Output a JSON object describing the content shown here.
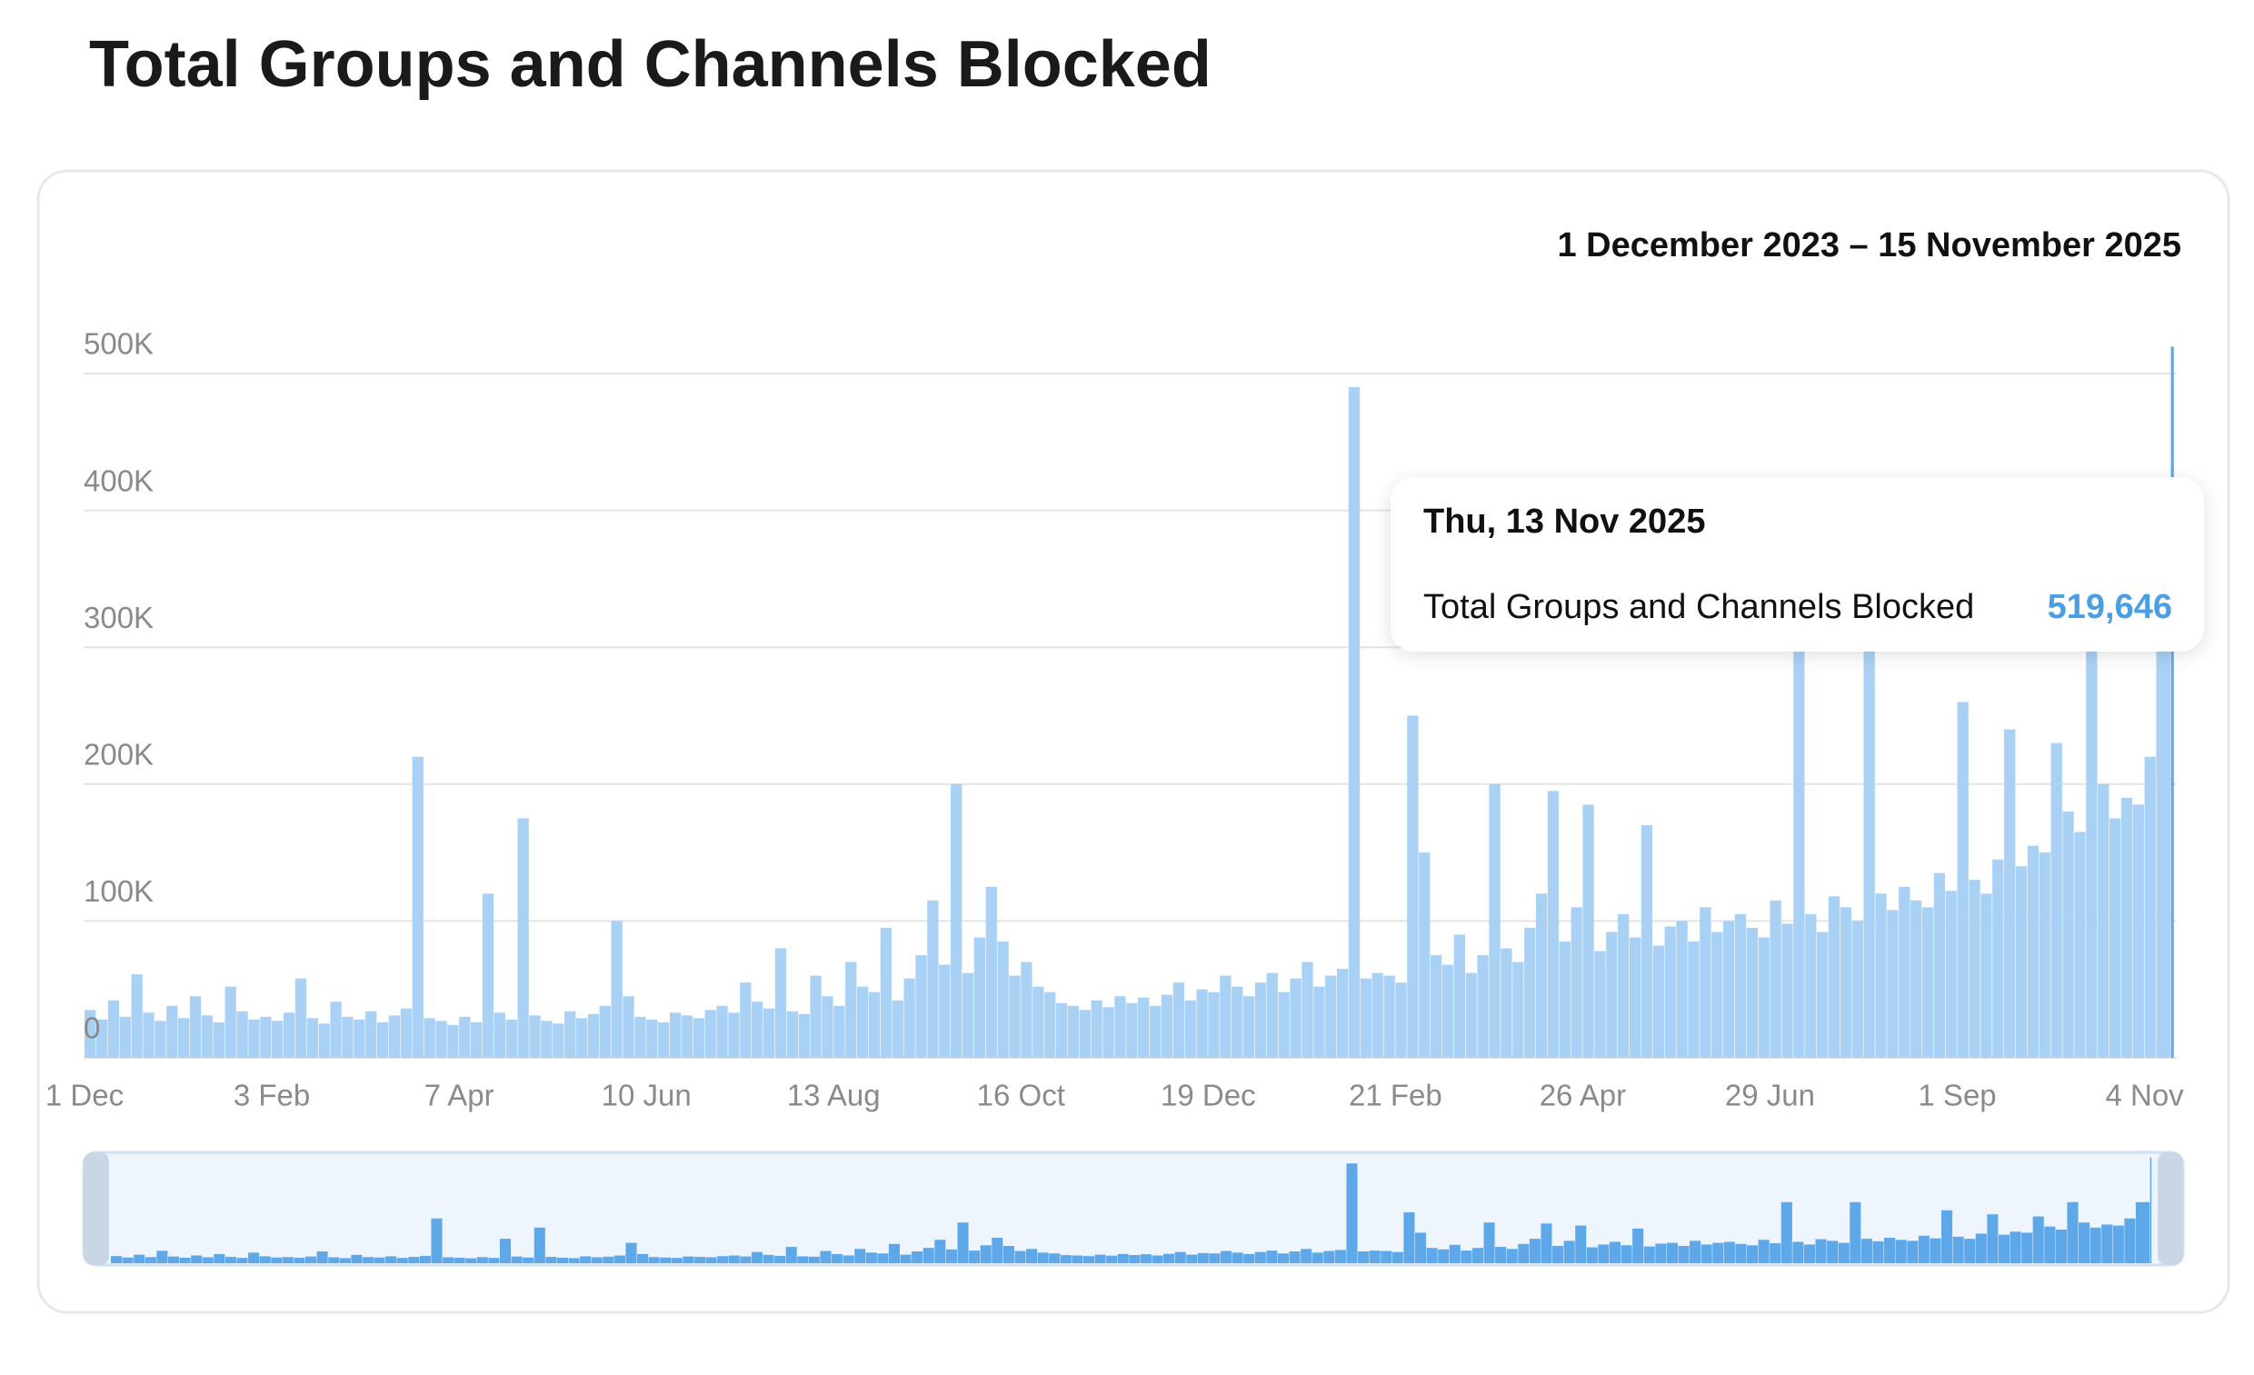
{
  "chart_data": {
    "type": "bar",
    "title": "Total Groups and Channels Blocked",
    "subtitle": "1 December 2023 – 15 November 2025",
    "x": [
      "2023-12-01",
      "2023-12-05",
      "2023-12-09",
      "2023-12-13",
      "2023-12-17",
      "2023-12-21",
      "2023-12-25",
      "2023-12-29",
      "2024-01-02",
      "2024-01-06",
      "2024-01-10",
      "2024-01-14",
      "2024-01-18",
      "2024-01-22",
      "2024-01-26",
      "2024-01-30",
      "2024-02-03",
      "2024-02-07",
      "2024-02-11",
      "2024-02-15",
      "2024-02-19",
      "2024-02-23",
      "2024-02-27",
      "2024-03-02",
      "2024-03-06",
      "2024-03-10",
      "2024-03-14",
      "2024-03-18",
      "2024-03-22",
      "2024-03-26",
      "2024-03-30",
      "2024-04-03",
      "2024-04-07",
      "2024-04-11",
      "2024-04-15",
      "2024-04-19",
      "2024-04-23",
      "2024-04-27",
      "2024-05-01",
      "2024-05-05",
      "2024-05-09",
      "2024-05-13",
      "2024-05-17",
      "2024-05-21",
      "2024-05-25",
      "2024-05-29",
      "2024-06-02",
      "2024-06-06",
      "2024-06-10",
      "2024-06-14",
      "2024-06-18",
      "2024-06-22",
      "2024-06-26",
      "2024-06-30",
      "2024-07-04",
      "2024-07-08",
      "2024-07-12",
      "2024-07-16",
      "2024-07-20",
      "2024-07-24",
      "2024-07-28",
      "2024-08-01",
      "2024-08-05",
      "2024-08-09",
      "2024-08-13",
      "2024-08-17",
      "2024-08-21",
      "2024-08-25",
      "2024-08-29",
      "2024-09-02",
      "2024-09-06",
      "2024-09-10",
      "2024-09-14",
      "2024-09-18",
      "2024-09-22",
      "2024-09-26",
      "2024-09-30",
      "2024-10-04",
      "2024-10-08",
      "2024-10-12",
      "2024-10-16",
      "2024-10-20",
      "2024-10-24",
      "2024-10-28",
      "2024-11-01",
      "2024-11-05",
      "2024-11-09",
      "2024-11-13",
      "2024-11-17",
      "2024-11-21",
      "2024-11-25",
      "2024-11-29",
      "2024-12-03",
      "2024-12-07",
      "2024-12-11",
      "2024-12-15",
      "2024-12-19",
      "2024-12-23",
      "2024-12-27",
      "2024-12-31",
      "2025-01-04",
      "2025-01-08",
      "2025-01-12",
      "2025-01-16",
      "2025-01-20",
      "2025-01-24",
      "2025-01-28",
      "2025-02-01",
      "2025-02-05",
      "2025-02-09",
      "2025-02-13",
      "2025-02-17",
      "2025-02-21",
      "2025-02-25",
      "2025-03-01",
      "2025-03-05",
      "2025-03-09",
      "2025-03-13",
      "2025-03-17",
      "2025-03-21",
      "2025-03-25",
      "2025-03-29",
      "2025-04-02",
      "2025-04-06",
      "2025-04-10",
      "2025-04-14",
      "2025-04-18",
      "2025-04-22",
      "2025-04-26",
      "2025-04-30",
      "2025-05-04",
      "2025-05-08",
      "2025-05-12",
      "2025-05-16",
      "2025-05-20",
      "2025-05-24",
      "2025-05-28",
      "2025-06-01",
      "2025-06-05",
      "2025-06-09",
      "2025-06-13",
      "2025-06-17",
      "2025-06-21",
      "2025-06-25",
      "2025-06-29",
      "2025-07-03",
      "2025-07-07",
      "2025-07-11",
      "2025-07-15",
      "2025-07-19",
      "2025-07-23",
      "2025-07-27",
      "2025-07-31",
      "2025-08-04",
      "2025-08-08",
      "2025-08-12",
      "2025-08-16",
      "2025-08-20",
      "2025-08-24",
      "2025-08-28",
      "2025-09-01",
      "2025-09-05",
      "2025-09-09",
      "2025-09-13",
      "2025-09-17",
      "2025-09-21",
      "2025-09-25",
      "2025-09-29",
      "2025-10-03",
      "2025-10-07",
      "2025-10-11",
      "2025-10-15",
      "2025-10-19",
      "2025-10-23",
      "2025-10-27",
      "2025-10-31",
      "2025-11-04",
      "2025-11-08",
      "2025-11-13"
    ],
    "series": [
      {
        "name": "Total Groups and Channels Blocked",
        "color": "#a9d1f5",
        "nav_color": "#5ea8ea",
        "values": [
          35000,
          28000,
          42000,
          30000,
          61000,
          33000,
          27000,
          38000,
          29000,
          45000,
          31000,
          26000,
          52000,
          34000,
          28000,
          30000,
          27000,
          33000,
          58000,
          29000,
          25000,
          41000,
          30000,
          28000,
          34000,
          26000,
          31000,
          36000,
          220000,
          29000,
          27000,
          24000,
          30000,
          26000,
          120000,
          33000,
          28000,
          175000,
          31000,
          27000,
          25000,
          34000,
          29000,
          32000,
          38000,
          100000,
          45000,
          30000,
          28000,
          26000,
          33000,
          31000,
          29000,
          35000,
          38000,
          33000,
          55000,
          41000,
          36000,
          80000,
          34000,
          32000,
          60000,
          45000,
          38000,
          70000,
          52000,
          48000,
          95000,
          42000,
          58000,
          75000,
          115000,
          68000,
          200000,
          62000,
          88000,
          125000,
          85000,
          60000,
          70000,
          52000,
          48000,
          40000,
          38000,
          35000,
          42000,
          37000,
          45000,
          40000,
          44000,
          38000,
          46000,
          55000,
          42000,
          50000,
          48000,
          60000,
          52000,
          45000,
          55000,
          62000,
          48000,
          58000,
          70000,
          52000,
          60000,
          65000,
          490000,
          58000,
          62000,
          60000,
          55000,
          250000,
          150000,
          75000,
          68000,
          90000,
          62000,
          75000,
          200000,
          80000,
          70000,
          95000,
          120000,
          195000,
          85000,
          110000,
          185000,
          78000,
          92000,
          105000,
          88000,
          170000,
          82000,
          96000,
          100000,
          85000,
          110000,
          92000,
          100000,
          105000,
          95000,
          88000,
          115000,
          98000,
          300000,
          105000,
          92000,
          118000,
          110000,
          100000,
          300000,
          120000,
          108000,
          125000,
          115000,
          110000,
          135000,
          122000,
          260000,
          130000,
          120000,
          145000,
          240000,
          140000,
          155000,
          150000,
          230000,
          180000,
          165000,
          300000,
          200000,
          175000,
          190000,
          185000,
          220000,
          300000,
          519646
        ]
      }
    ],
    "xlim": [
      "2023-12-01",
      "2025-11-15"
    ],
    "xticks": [
      {
        "value": "2023-12-01",
        "label": "1 Dec"
      },
      {
        "value": "2024-02-03",
        "label": "3 Feb"
      },
      {
        "value": "2024-04-07",
        "label": "7 Apr"
      },
      {
        "value": "2024-06-10",
        "label": "10 Jun"
      },
      {
        "value": "2024-08-13",
        "label": "13 Aug"
      },
      {
        "value": "2024-10-16",
        "label": "16 Oct"
      },
      {
        "value": "2024-12-19",
        "label": "19 Dec"
      },
      {
        "value": "2025-02-21",
        "label": "21 Feb"
      },
      {
        "value": "2025-04-26",
        "label": "26 Apr"
      },
      {
        "value": "2025-06-29",
        "label": "29 Jun"
      },
      {
        "value": "2025-09-01",
        "label": "1 Sep"
      },
      {
        "value": "2025-11-04",
        "label": "4 Nov"
      }
    ],
    "ylim": [
      0,
      500000
    ],
    "yticks": [
      {
        "value": 0,
        "label": "0"
      },
      {
        "value": 100000,
        "label": "100K"
      },
      {
        "value": 200000,
        "label": "200K"
      },
      {
        "value": 300000,
        "label": "300K"
      },
      {
        "value": 400000,
        "label": "400K"
      },
      {
        "value": 500000,
        "label": "500K"
      }
    ],
    "grid": true,
    "tooltip": {
      "date": "Thu, 13 Nov 2025",
      "value": {
        "value": 519646,
        "label": "519,646"
      }
    }
  }
}
